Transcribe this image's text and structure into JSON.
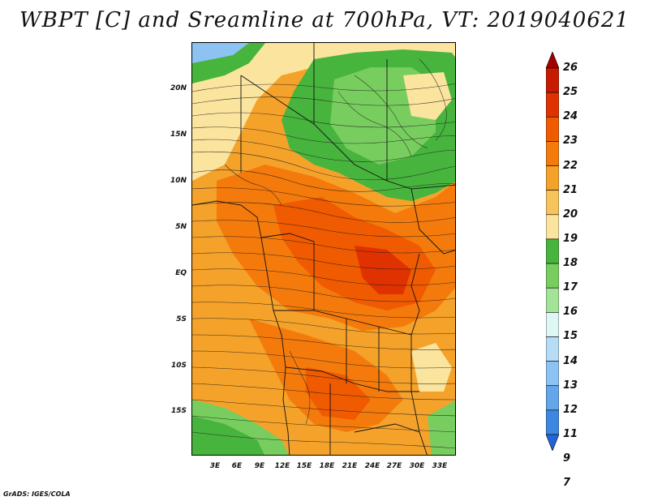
{
  "title": "WBPT [C] and Sreamline at 700hPa, VT: 2019040621",
  "footer": "GrADS: IGES/COLA",
  "map": {
    "lat_labels": [
      "20N",
      "15N",
      "10N",
      "5N",
      "EQ",
      "5S",
      "10S",
      "15S"
    ],
    "lon_labels": [
      "3E",
      "6E",
      "9E",
      "12E",
      "15E",
      "18E",
      "21E",
      "24E",
      "27E",
      "30E",
      "33E"
    ]
  },
  "colorbar": {
    "labels": [
      "26",
      "25",
      "24",
      "23",
      "22",
      "21",
      "20",
      "19",
      "18",
      "17",
      "16",
      "15",
      "14",
      "13",
      "12",
      "11",
      "9",
      "7"
    ],
    "colors": [
      "#a50000",
      "#c81a00",
      "#e03200",
      "#f05a00",
      "#f47a0c",
      "#f5a22a",
      "#f5c45a",
      "#fbe49e",
      "#47b43d",
      "#78cd5f",
      "#a3e397",
      "#dff7f4",
      "#b6dcf6",
      "#8cc3f2",
      "#64a6ea",
      "#3c88e0",
      "#2066d8"
    ]
  }
}
